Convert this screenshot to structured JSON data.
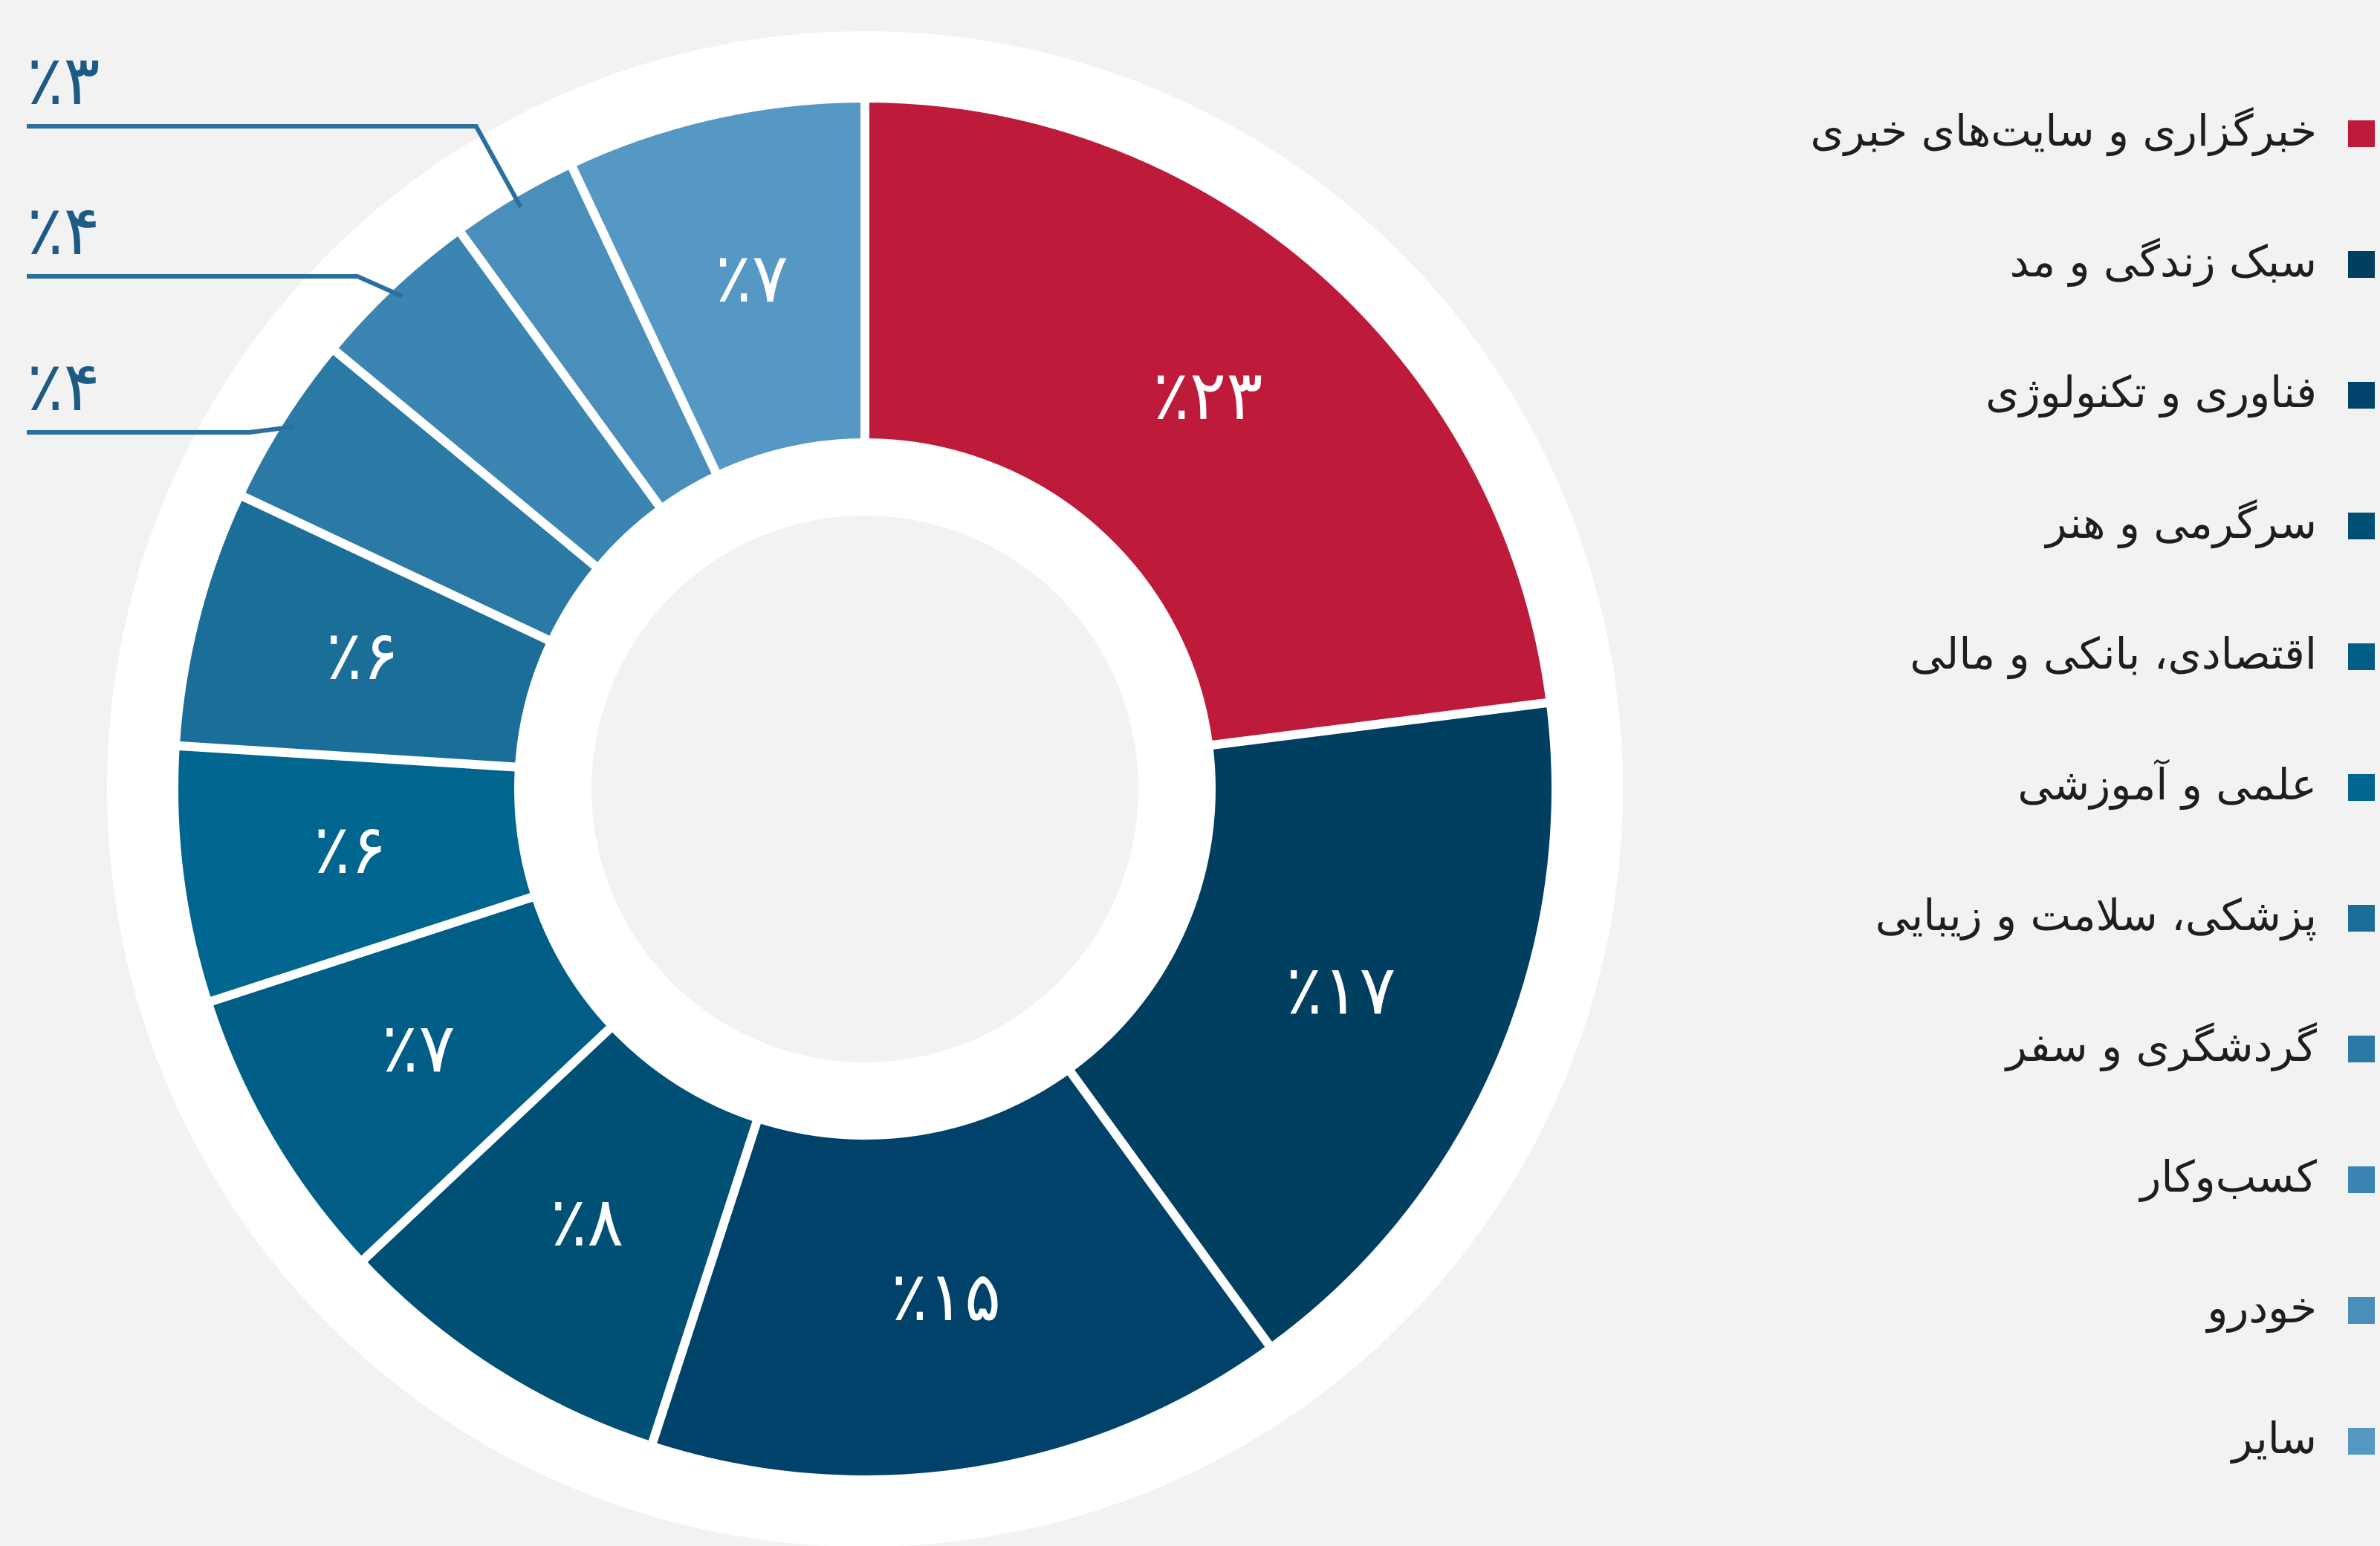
{
  "chart_data": {
    "type": "donut",
    "categories": [
      "خبرگزاری و سایت‌های خبری",
      "سبک زندگی و مد",
      "فناوری و تکنولوژی",
      "سرگرمی و هنر",
      "اقتصادی، بانکی و مالی",
      "علمی و آموزشی",
      "پزشکی، سلامت و زیبایی",
      "گردشگری و سفر",
      "کسب‌وکار",
      "خودرو",
      "سایر"
    ],
    "values": [
      23,
      17,
      15,
      8,
      7,
      6,
      6,
      4,
      4,
      3,
      7
    ],
    "value_labels": [
      "٪۲۳",
      "٪۱۷",
      "٪۱۵",
      "٪۸",
      "٪۷",
      "٪۶",
      "٪۶",
      "٪۴",
      "٪۴",
      "٪۳",
      "٪۷"
    ],
    "colors": [
      "#be1a3a",
      "#003f5f",
      "#00426a",
      "#005075",
      "#005e86",
      "#00658f",
      "#1b6e98",
      "#2b79a5",
      "#3a85b2",
      "#4a8fbc",
      "#5698c4"
    ]
  }
}
